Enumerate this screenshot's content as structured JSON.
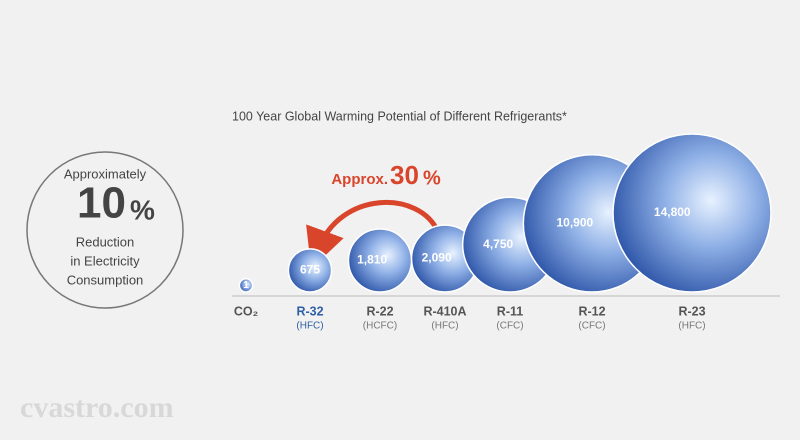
{
  "chart_data": {
    "type": "bubble",
    "title": "100 Year Global Warming Potential of Different Refrigerants*",
    "categories": [
      "CO₂",
      "R-32",
      "R-22",
      "R-410A",
      "R-11",
      "R-12",
      "R-23"
    ],
    "subcategories": [
      null,
      "(HFC)",
      "(HCFC)",
      "(HFC)",
      "(CFC)",
      "(CFC)",
      "(HFC)"
    ],
    "values": [
      1,
      675,
      1810,
      2090,
      4750,
      10900,
      14800
    ],
    "value_labels": [
      "1",
      "675",
      "1,810",
      "2,090",
      "4,750",
      "10,900",
      "14,800"
    ],
    "color": "#3d68b8",
    "highlight": "R-32",
    "highlight_color": "#2f5fa6",
    "annotation": {
      "prefix": "Approx.",
      "number": "30",
      "unit": "%",
      "color": "#d9452b"
    },
    "callout": {
      "top": "Approximately",
      "number": "10",
      "unit": "%",
      "lines": [
        "Reduction",
        "in Electricity",
        "Consumption"
      ]
    },
    "watermark": "cvastro.com"
  }
}
